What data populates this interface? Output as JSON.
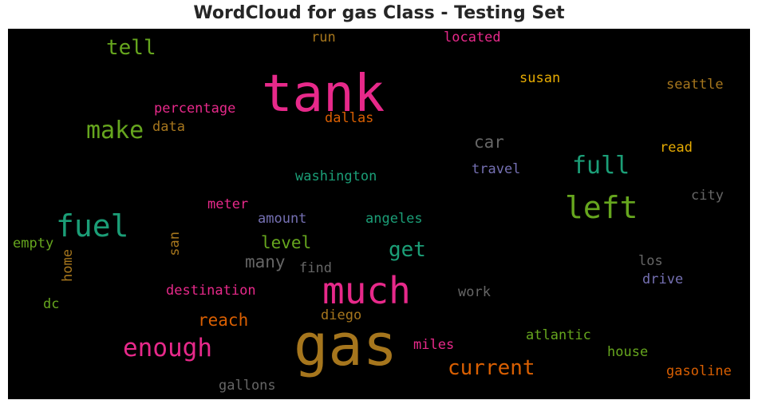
{
  "title": "WordCloud for gas Class - Testing Set",
  "chart_data": {
    "type": "wordcloud",
    "background": "#000000",
    "colormap": "Dark2",
    "words": [
      {
        "text": "gas",
        "color": "#a6761d",
        "weight": 1.0
      },
      {
        "text": "tank",
        "color": "#e7298a",
        "weight": 0.94
      },
      {
        "text": "much",
        "color": "#e7298a",
        "weight": 0.74
      },
      {
        "text": "fuel",
        "color": "#1b9e77",
        "weight": 0.58
      },
      {
        "text": "left",
        "color": "#66a61e",
        "weight": 0.58
      },
      {
        "text": "enough",
        "color": "#e7298a",
        "weight": 0.5
      },
      {
        "text": "make",
        "color": "#66a61e",
        "weight": 0.48
      },
      {
        "text": "full",
        "color": "#1b9e77",
        "weight": 0.48
      },
      {
        "text": "current",
        "color": "#d95f02",
        "weight": 0.42
      },
      {
        "text": "tell",
        "color": "#66a61e",
        "weight": 0.4
      },
      {
        "text": "get",
        "color": "#1b9e77",
        "weight": 0.4
      },
      {
        "text": "car",
        "color": "#666666",
        "weight": 0.34
      },
      {
        "text": "many",
        "color": "#666666",
        "weight": 0.34
      },
      {
        "text": "level",
        "color": "#66a61e",
        "weight": 0.34
      },
      {
        "text": "reach",
        "color": "#d95f02",
        "weight": 0.34
      },
      {
        "text": "washington",
        "color": "#1b9e77",
        "weight": 0.28
      },
      {
        "text": "percentage",
        "color": "#e7298a",
        "weight": 0.28
      },
      {
        "text": "dallas",
        "color": "#d95f02",
        "weight": 0.28
      },
      {
        "text": "travel",
        "color": "#7570b3",
        "weight": 0.28
      },
      {
        "text": "destination",
        "color": "#e7298a",
        "weight": 0.28
      },
      {
        "text": "gallons",
        "color": "#666666",
        "weight": 0.28
      },
      {
        "text": "gasoline",
        "color": "#d95f02",
        "weight": 0.28
      },
      {
        "text": "susan",
        "color": "#e6ab02",
        "weight": 0.28
      },
      {
        "text": "seattle",
        "color": "#a6761d",
        "weight": 0.28
      },
      {
        "text": "located",
        "color": "#e7298a",
        "weight": 0.28
      },
      {
        "text": "run",
        "color": "#a6761d",
        "weight": 0.28
      },
      {
        "text": "data",
        "color": "#a6761d",
        "weight": 0.28
      },
      {
        "text": "read",
        "color": "#e6ab02",
        "weight": 0.28
      },
      {
        "text": "city",
        "color": "#666666",
        "weight": 0.28
      },
      {
        "text": "meter",
        "color": "#e7298a",
        "weight": 0.28
      },
      {
        "text": "amount",
        "color": "#7570b3",
        "weight": 0.28
      },
      {
        "text": "angeles",
        "color": "#1b9e77",
        "weight": 0.28
      },
      {
        "text": "empty",
        "color": "#66a61e",
        "weight": 0.28
      },
      {
        "text": "san",
        "color": "#a6761d",
        "weight": 0.28
      },
      {
        "text": "home",
        "color": "#a6761d",
        "weight": 0.28
      },
      {
        "text": "find",
        "color": "#666666",
        "weight": 0.28
      },
      {
        "text": "los",
        "color": "#666666",
        "weight": 0.28
      },
      {
        "text": "drive",
        "color": "#7570b3",
        "weight": 0.28
      },
      {
        "text": "work",
        "color": "#666666",
        "weight": 0.28
      },
      {
        "text": "dc",
        "color": "#66a61e",
        "weight": 0.28
      },
      {
        "text": "diego",
        "color": "#a6761d",
        "weight": 0.28
      },
      {
        "text": "atlantic",
        "color": "#66a61e",
        "weight": 0.28
      },
      {
        "text": "house",
        "color": "#66a61e",
        "weight": 0.28
      },
      {
        "text": "miles",
        "color": "#e7298a",
        "weight": 0.28
      }
    ]
  }
}
